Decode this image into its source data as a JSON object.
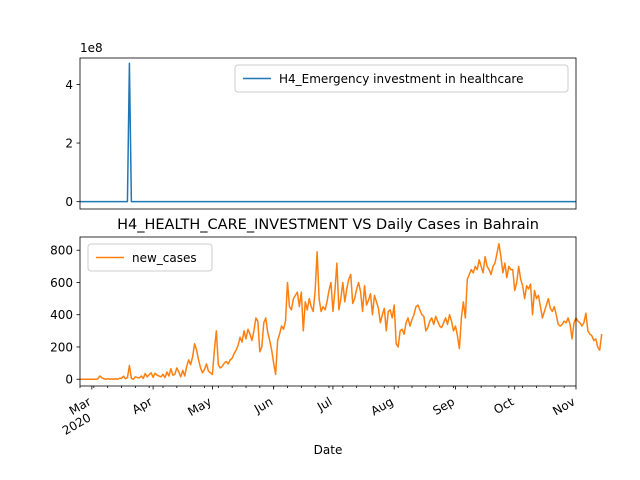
{
  "chart_data": [
    {
      "type": "line",
      "title": "",
      "xlabel": "",
      "ylabel": "",
      "offset_text": "1e8",
      "ylim": [
        -0.25,
        4.9
      ],
      "yticks": [
        0,
        2,
        4
      ],
      "xlim": [
        "2020-02-24",
        "2020-11-01"
      ],
      "legend_location": "upper-right",
      "series": [
        {
          "name": "H4_Emergency investment in healthcare",
          "color": "#1f77b4",
          "x": [
            "2020-02-24",
            "2020-03-19",
            "2020-03-20",
            "2020-03-21",
            "2020-11-01"
          ],
          "y": [
            0,
            0,
            4.72,
            0,
            0
          ]
        }
      ]
    },
    {
      "type": "line",
      "title": "H4_HEALTH_CARE_INVESTMENT VS Daily Cases in Bahrain",
      "xlabel": "Date",
      "ylabel": "",
      "ylim": [
        -42,
        882
      ],
      "yticks": [
        0,
        200,
        400,
        600,
        800
      ],
      "xlim": [
        "2020-02-24",
        "2020-11-01"
      ],
      "xtick_labels": [
        {
          "date": "2020-03-01",
          "label": "Mar",
          "sub": "2020"
        },
        {
          "date": "2020-04-01",
          "label": "Apr"
        },
        {
          "date": "2020-05-01",
          "label": "May"
        },
        {
          "date": "2020-06-01",
          "label": "Jun"
        },
        {
          "date": "2020-07-01",
          "label": "Jul"
        },
        {
          "date": "2020-08-01",
          "label": "Aug"
        },
        {
          "date": "2020-09-01",
          "label": "Sep"
        },
        {
          "date": "2020-10-01",
          "label": "Oct"
        },
        {
          "date": "2020-11-01",
          "label": "Nov"
        }
      ],
      "legend_location": "upper-left",
      "series": [
        {
          "name": "new_cases",
          "color": "#ff7f0e",
          "start_date": "2020-02-24",
          "values": [
            0,
            0,
            0,
            0,
            0,
            0,
            0,
            0,
            0,
            2,
            20,
            10,
            3,
            0,
            4,
            0,
            2,
            0,
            3,
            0,
            6,
            5,
            19,
            3,
            10,
            85,
            5,
            0,
            15,
            10,
            8,
            20,
            5,
            35,
            15,
            28,
            40,
            12,
            38,
            25,
            20,
            15,
            30,
            10,
            45,
            20,
            65,
            25,
            30,
            70,
            45,
            15,
            55,
            20,
            80,
            120,
            90,
            140,
            220,
            180,
            120,
            70,
            40,
            60,
            95,
            50,
            40,
            30,
            180,
            300,
            90,
            70,
            80,
            100,
            110,
            95,
            120,
            130,
            160,
            180,
            210,
            260,
            230,
            300,
            250,
            310,
            280,
            240,
            300,
            380,
            360,
            170,
            200,
            350,
            380,
            290,
            240,
            180,
            100,
            30,
            240,
            280,
            330,
            310,
            360,
            600,
            450,
            430,
            500,
            520,
            540,
            450,
            540,
            300,
            480,
            430,
            500,
            450,
            420,
            550,
            790,
            500,
            420,
            450,
            430,
            480,
            550,
            600,
            420,
            550,
            720,
            430,
            500,
            600,
            480,
            560,
            620,
            650,
            470,
            500,
            560,
            600,
            540,
            420,
            580,
            460,
            490,
            530,
            400,
            520,
            480,
            440,
            350,
            400,
            440,
            300,
            420,
            430,
            380,
            460,
            220,
            200,
            300,
            310,
            280,
            350,
            380,
            330,
            370,
            400,
            450,
            460,
            430,
            400,
            390,
            300,
            320,
            360,
            380,
            340,
            390,
            360,
            330,
            320,
            350,
            380,
            340,
            400,
            360,
            300,
            330,
            270,
            190,
            380,
            480,
            380,
            620,
            650,
            680,
            660,
            700,
            680,
            740,
            700,
            660,
            760,
            700,
            680,
            650,
            700,
            720,
            780,
            840,
            760,
            660,
            720,
            630,
            700,
            680,
            680,
            550,
            600,
            700,
            620,
            580,
            500,
            580,
            560,
            590,
            400,
            550,
            500,
            520,
            450,
            380,
            420,
            460,
            500,
            440,
            420,
            450,
            400,
            340,
            330,
            340,
            360,
            350,
            380,
            340,
            250,
            350,
            380,
            360,
            350,
            330,
            350,
            410,
            300,
            280,
            270,
            240,
            250,
            200,
            180,
            280
          ]
        }
      ]
    }
  ]
}
